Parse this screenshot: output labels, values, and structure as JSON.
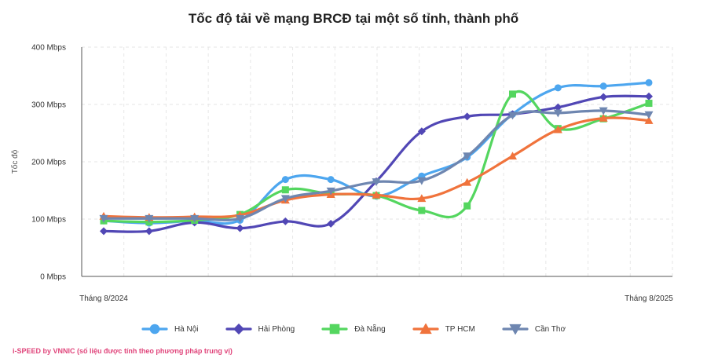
{
  "chart_data": {
    "type": "line",
    "title": "Tốc độ tải về mạng BRCĐ tại một số tỉnh, thành phố",
    "ylabel": "Tốc độ",
    "ylim": [
      0,
      400
    ],
    "yticks": [
      "0 Mbps",
      "100 Mbps",
      "200 Mbps",
      "300 Mbps",
      "400 Mbps"
    ],
    "ytick_values": [
      0,
      100,
      200,
      300,
      400
    ],
    "x_start_label": "Tháng 8/2024",
    "x_end_label": "Tháng 8/2025",
    "x_count": 13,
    "grid": true,
    "legend_position": "bottom",
    "series": [
      {
        "name": "Hà Nội",
        "color": "#4da6ef",
        "marker": "circle",
        "values": [
          97,
          93,
          97,
          98,
          169,
          169,
          140,
          175,
          208,
          283,
          329,
          332,
          338
        ]
      },
      {
        "name": "Hải Phòng",
        "color": "#5147b5",
        "marker": "diamond",
        "values": [
          79,
          79,
          94,
          84,
          96,
          92,
          166,
          253,
          279,
          283,
          295,
          313,
          314
        ]
      },
      {
        "name": "Đà Nẵng",
        "color": "#54d65f",
        "marker": "square",
        "values": [
          97,
          95,
          98,
          108,
          151,
          144,
          141,
          115,
          123,
          318,
          258,
          275,
          302
        ]
      },
      {
        "name": "TP HCM",
        "color": "#f0733c",
        "marker": "triangle-up",
        "values": [
          105,
          103,
          104,
          107,
          133,
          143,
          142,
          136,
          164,
          210,
          256,
          276,
          272
        ]
      },
      {
        "name": "Cần Thơ",
        "color": "#6e86b0",
        "marker": "triangle-down",
        "values": [
          101,
          101,
          101,
          101,
          136,
          149,
          165,
          167,
          210,
          281,
          285,
          289,
          282
        ]
      }
    ]
  },
  "footer_note": "i-SPEED by VNNIC (số liệu được tính theo phương pháp trung vị)"
}
